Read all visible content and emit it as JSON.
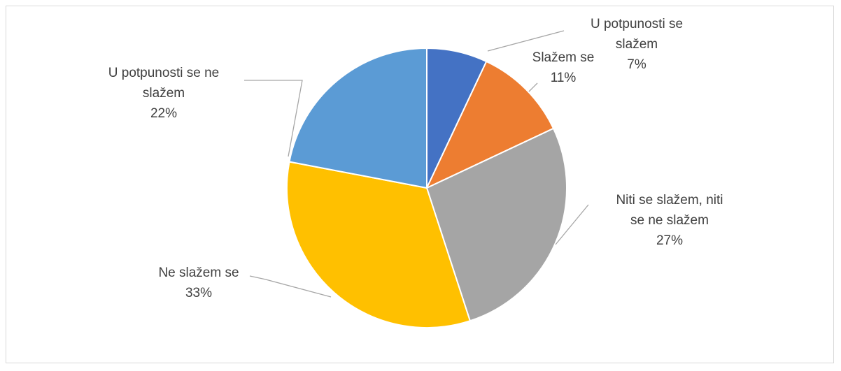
{
  "chart_data": {
    "type": "pie",
    "title": "",
    "slices": [
      {
        "label": "U potpunosti se slažem",
        "label_lines": [
          "U potpunosti se",
          "slažem"
        ],
        "value": 7,
        "value_label": "7%",
        "color": "#4472C4"
      },
      {
        "label": "Slažem se",
        "label_lines": [
          "Slažem se"
        ],
        "value": 11,
        "value_label": "11%",
        "color": "#ED7D31"
      },
      {
        "label": "Niti se slažem, niti se ne slažem",
        "label_lines": [
          "Niti se slažem, niti",
          "se ne slažem"
        ],
        "value": 27,
        "value_label": "27%",
        "color": "#A5A5A5"
      },
      {
        "label": "Ne slažem se",
        "label_lines": [
          "Ne slažem se"
        ],
        "value": 33,
        "value_label": "33%",
        "color": "#FFC000"
      },
      {
        "label": "U potpunosti se ne slažem",
        "label_lines": [
          "U potpunosti se ne",
          "slažem"
        ],
        "value": 22,
        "value_label": "22%",
        "color": "#5B9BD5"
      }
    ],
    "legend": "none",
    "leader_line_color": "#a6a6a6"
  }
}
